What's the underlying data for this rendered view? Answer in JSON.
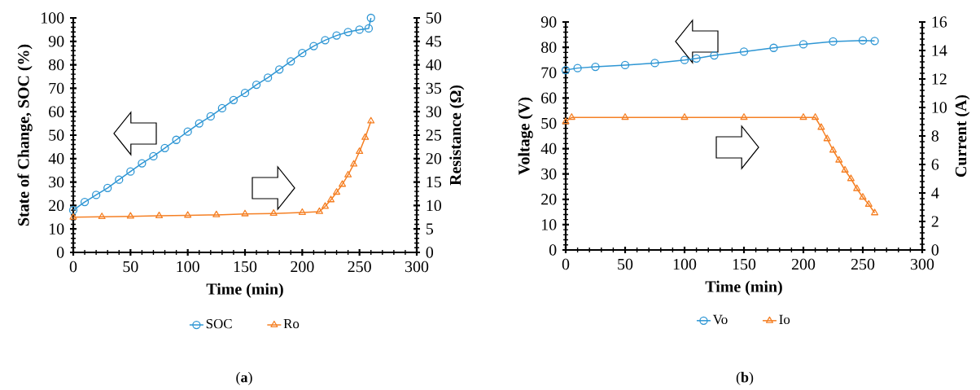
{
  "chart_data": [
    {
      "type": "line",
      "xlabel": "Time (min)",
      "ylabel": "State of Change, SOC (%)",
      "y2label": "Resistance (Ω)",
      "xlim": [
        0,
        300
      ],
      "xticks": [
        0,
        50,
        100,
        150,
        200,
        250,
        300
      ],
      "ylim": [
        0,
        100
      ],
      "yticks": [
        0,
        10,
        20,
        30,
        40,
        50,
        60,
        70,
        80,
        90,
        100
      ],
      "y2lim": [
        0,
        50
      ],
      "y2ticks": [
        0,
        5,
        10,
        15,
        20,
        25,
        30,
        35,
        40,
        45,
        50
      ],
      "legend": "bottom",
      "annotations": [
        "(**a**)"
      ],
      "series": [
        {
          "name": "SOC",
          "color": "#2e96d4",
          "axis": "y",
          "marker": "circle",
          "x": [
            0,
            10,
            20,
            30,
            40,
            50,
            60,
            70,
            80,
            90,
            100,
            110,
            120,
            130,
            140,
            150,
            160,
            170,
            180,
            190,
            200,
            210,
            220,
            230,
            240,
            250,
            258,
            260
          ],
          "values": [
            18,
            21.5,
            24.5,
            27.5,
            31,
            34.5,
            38,
            41,
            44.5,
            48,
            51.5,
            55,
            58,
            61.5,
            65,
            68,
            71.5,
            74.5,
            78,
            81.5,
            85,
            88,
            90.5,
            92.5,
            94,
            95,
            95.5,
            100
          ]
        },
        {
          "name": "Ro",
          "color": "#f58025",
          "axis": "y2",
          "marker": "triangle",
          "x": [
            0,
            25,
            50,
            75,
            100,
            125,
            150,
            175,
            200,
            215,
            220,
            225,
            230,
            235,
            240,
            245,
            250,
            255,
            260
          ],
          "values": [
            7.5,
            7.6,
            7.7,
            7.8,
            7.9,
            8,
            8.2,
            8.3,
            8.5,
            8.7,
            9.8,
            11.2,
            12.8,
            14.5,
            16.5,
            18.8,
            21.5,
            24.5,
            28
          ]
        }
      ]
    },
    {
      "type": "line",
      "xlabel": "Time (min)",
      "ylabel": "Voltage (V)",
      "y2label": "Current (A)",
      "xlim": [
        0,
        300
      ],
      "xticks": [
        0,
        50,
        100,
        150,
        200,
        250,
        300
      ],
      "ylim": [
        0,
        90
      ],
      "yticks": [
        0,
        10,
        20,
        30,
        40,
        50,
        60,
        70,
        80,
        90
      ],
      "y2lim": [
        0,
        16
      ],
      "y2ticks": [
        0,
        2,
        4,
        6,
        8,
        10,
        12,
        14,
        16
      ],
      "legend": "bottom",
      "annotations": [
        "(**b**)"
      ],
      "series": [
        {
          "name": "Vo",
          "color": "#2e96d4",
          "axis": "y",
          "marker": "circle",
          "x": [
            0,
            10,
            25,
            50,
            75,
            100,
            110,
            125,
            150,
            175,
            200,
            225,
            250,
            260
          ],
          "values": [
            71,
            71.8,
            72.3,
            73,
            73.8,
            75,
            75.6,
            76.8,
            78.3,
            79.8,
            81.2,
            82.3,
            82.7,
            82.5
          ]
        },
        {
          "name": "Io",
          "color": "#f58025",
          "axis": "y2",
          "marker": "triangle",
          "x": [
            0,
            5,
            50,
            100,
            150,
            200,
            210,
            215,
            220,
            225,
            230,
            235,
            240,
            245,
            250,
            255,
            260
          ],
          "values": [
            9,
            9.3,
            9.3,
            9.3,
            9.3,
            9.3,
            9.3,
            8.6,
            7.8,
            7,
            6.3,
            5.6,
            5,
            4.3,
            3.7,
            3.2,
            2.6
          ]
        }
      ]
    }
  ]
}
